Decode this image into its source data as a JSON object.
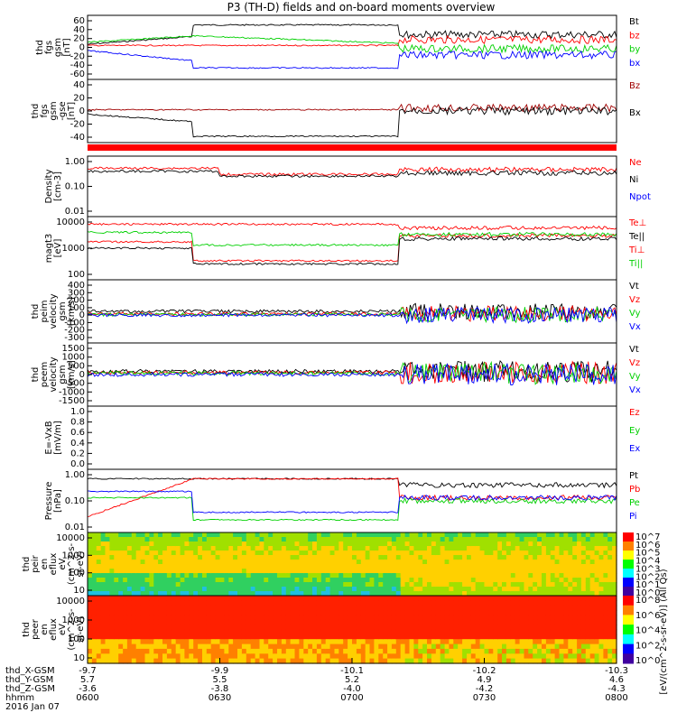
{
  "chart_data": {
    "type": "line",
    "title": "P3 (TH-D) fields and on-board moments overview",
    "panels": [
      {
        "id": "fgs-gsm",
        "ylabel_lines": [
          "thd",
          "fgs",
          "gsm",
          "[nT]"
        ],
        "yticks": [
          "60",
          "40",
          "20",
          "0",
          "-20",
          "-40",
          "-60"
        ],
        "series": [
          {
            "name": "Bt",
            "color": "#000000"
          },
          {
            "name": "bz",
            "color": "#ff0000"
          },
          {
            "name": "by",
            "color": "#00d000"
          },
          {
            "name": "bx",
            "color": "#0000ff"
          }
        ]
      },
      {
        "id": "fgs-gsm-gse",
        "ylabel_lines": [
          "thd",
          "fgs",
          "gsm",
          "-gse",
          "[nT]"
        ],
        "yticks": [
          "40",
          "20",
          "0",
          "-20",
          "-40"
        ],
        "series": [
          {
            "name": "Bz",
            "color": "#a00000"
          },
          {
            "name": "Bx",
            "color": "#000000"
          }
        ]
      },
      {
        "id": "density",
        "ylabel_lines": [
          "Density",
          "[cm-3]"
        ],
        "yticks": [
          "1.00",
          "0.10",
          "0.01"
        ],
        "series": [
          {
            "name": "Ne",
            "color": "#ff0000"
          },
          {
            "name": "Ni",
            "color": "#000000"
          },
          {
            "name": "Npot",
            "color": "#0000ff"
          }
        ]
      },
      {
        "id": "temperature",
        "ylabel_lines": [
          "magt3",
          "[eV]"
        ],
        "yticks": [
          "10000",
          "1000",
          "100"
        ],
        "series": [
          {
            "name": "Te⊥",
            "color": "#ff0000"
          },
          {
            "name": "Te||",
            "color": "#000000"
          },
          {
            "name": "Ti⊥",
            "color": "#ff0000"
          },
          {
            "name": "Ti||",
            "color": "#00d000"
          }
        ]
      },
      {
        "id": "peim-velocity",
        "ylabel_lines": [
          "thd",
          "peim",
          "velocity",
          "gsm",
          "[km/s]"
        ],
        "yticks": [
          "400",
          "300",
          "200",
          "100",
          "0",
          "-100",
          "-200",
          "-300"
        ],
        "series": [
          {
            "name": "Vt",
            "color": "#000000"
          },
          {
            "name": "Vz",
            "color": "#ff0000"
          },
          {
            "name": "Vy",
            "color": "#00d000"
          },
          {
            "name": "Vx",
            "color": "#0000ff"
          }
        ]
      },
      {
        "id": "peem-velocity",
        "ylabel_lines": [
          "thd",
          "peem",
          "velocity",
          "gsm",
          "[km/s]"
        ],
        "yticks": [
          "1500",
          "1000",
          "500",
          "0",
          "-500",
          "-1000",
          "-1500"
        ],
        "series": [
          {
            "name": "Vt",
            "color": "#000000"
          },
          {
            "name": "Vz",
            "color": "#ff0000"
          },
          {
            "name": "Vy",
            "color": "#00d000"
          },
          {
            "name": "Vx",
            "color": "#0000ff"
          }
        ]
      },
      {
        "id": "efield",
        "ylabel_lines": [
          "E=-VxB",
          "[mV/m]"
        ],
        "yticks": [
          "1.0",
          "0.8",
          "0.6",
          "0.4",
          "0.2",
          "0.0"
        ],
        "series": [
          {
            "name": "Ez",
            "color": "#ff0000"
          },
          {
            "name": "Ey",
            "color": "#00d000"
          },
          {
            "name": "Ex",
            "color": "#0000ff"
          }
        ]
      },
      {
        "id": "pressure",
        "ylabel_lines": [
          "Pressure",
          "[nPa]"
        ],
        "yticks": [
          "1.00",
          "0.10",
          "0.01"
        ],
        "series": [
          {
            "name": "Pt",
            "color": "#000000"
          },
          {
            "name": "Pb",
            "color": "#ff0000"
          },
          {
            "name": "Pe",
            "color": "#00d000"
          },
          {
            "name": "Pi",
            "color": "#0000ff"
          }
        ]
      },
      {
        "id": "peir-spectrogram",
        "ylabel_lines": [
          "thd",
          "peir",
          "en",
          "eflux",
          "eV",
          "(cm^2-s-",
          "sr-eV)"
        ],
        "yticks": [
          "10000",
          "1000",
          "100",
          "10"
        ]
      },
      {
        "id": "peer-spectrogram",
        "ylabel_lines": [
          "thd",
          "peer",
          "en",
          "eflux",
          "eV",
          "(cm^2-s-",
          "sr-eV)"
        ],
        "yticks": [
          "10000",
          "1000",
          "100",
          "10"
        ]
      }
    ],
    "colorbar": {
      "label": "[eV/(cm^2-s-sr-eV)] (All Qs)",
      "ticks": [
        "10^7",
        "10^6",
        "10^5",
        "10^4",
        "10^3",
        "10^2",
        "10^1",
        "10^0"
      ],
      "ticks2": [
        "10^8",
        "10^6",
        "10^4",
        "10^2",
        "10^0"
      ]
    },
    "x_axis": {
      "ticks_top": [
        "-9.7",
        "-9.9",
        "-10.1",
        "-10.2",
        "-10.3"
      ],
      "row_labels": [
        "thd_X-GSM",
        "thd_Y-GSM",
        "thd_Z-GSM",
        "hhmm",
        "2016 Jan 07"
      ],
      "rows": [
        [
          "-9.7",
          "-9.9",
          "-10.1",
          "-10.2",
          "-10.3"
        ],
        [
          "5.7",
          "5.5",
          "5.2",
          "4.9",
          "4.6"
        ],
        [
          "-3.6",
          "-3.8",
          "-4.0",
          "-4.2",
          "-4.3"
        ],
        [
          "0600",
          "0630",
          "0700",
          "0730",
          "0800"
        ]
      ]
    }
  }
}
